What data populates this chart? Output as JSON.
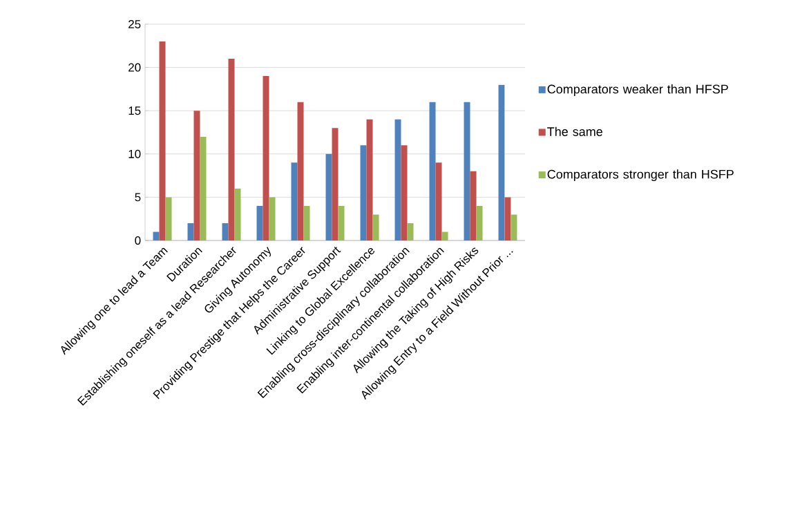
{
  "chart_data": {
    "type": "bar",
    "categories": [
      "Allowing one to lead a Team",
      "Duration",
      "Establishing oneself as a lead Researcher",
      "Giving Autonomy",
      "Providing Prestige that Helps the Career",
      "Administrative Support",
      "Linking to Global Excellence",
      "Enabling cross-disciplinary collaboration",
      "Enabling inter-continental collaboration",
      "Allowing the Taking of High Risks",
      "Allowing Entry to a Field Without Prior ..."
    ],
    "series": [
      {
        "name": "Comparators weaker than HFSP",
        "color": "#4f81bd",
        "values": [
          1,
          2,
          2,
          4,
          9,
          10,
          11,
          14,
          16,
          16,
          18
        ]
      },
      {
        "name": "The same",
        "color": "#c0504d",
        "values": [
          23,
          15,
          21,
          19,
          16,
          13,
          14,
          11,
          9,
          8,
          5
        ]
      },
      {
        "name": "Comparators stronger than HSFP",
        "color": "#9bbb59",
        "values": [
          5,
          12,
          6,
          5,
          4,
          4,
          3,
          2,
          1,
          4,
          3
        ]
      }
    ],
    "ylim": [
      0,
      25
    ],
    "yticks": [
      0,
      5,
      10,
      15,
      20,
      25
    ],
    "grid": "y",
    "legend": "right"
  }
}
